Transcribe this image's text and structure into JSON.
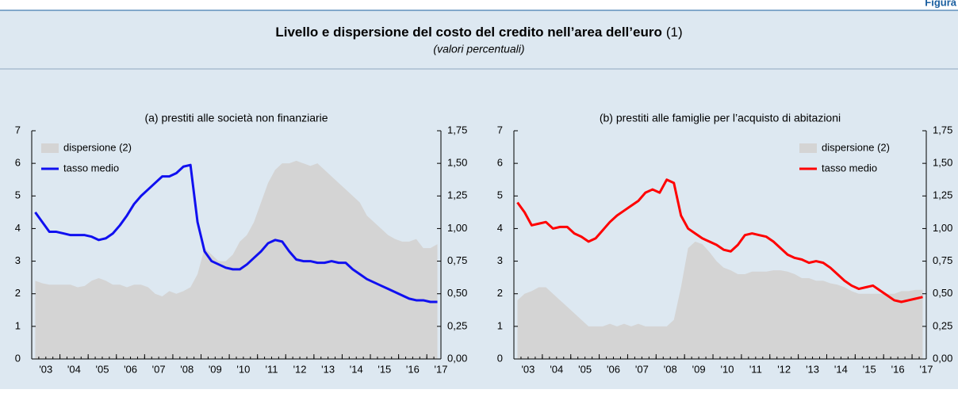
{
  "header": {
    "figure_label": "Figura",
    "title": "Livello e dispersione del costo del credito nell’area dell’euro",
    "title_note": "(1)",
    "subtitle": "(valori percentuali)"
  },
  "chart_data": [
    {
      "type": "line",
      "subtitle": "(a) prestiti alle società non finanziarie",
      "legend": "upper left",
      "grid": false,
      "categories": [
        null,
        "'03",
        null,
        null,
        null,
        "'04",
        null,
        null,
        null,
        "'05",
        null,
        null,
        null,
        "'06",
        null,
        null,
        null,
        "'07",
        null,
        null,
        null,
        "'08",
        null,
        null,
        null,
        "'09",
        null,
        null,
        null,
        "'10",
        null,
        null,
        null,
        "'11",
        null,
        null,
        null,
        "'12",
        null,
        null,
        null,
        "'13",
        null,
        null,
        null,
        "'14",
        null,
        null,
        null,
        "'15",
        null,
        null,
        null,
        "'16",
        null,
        null,
        null,
        "'17"
      ],
      "ylim": [
        0,
        7
      ],
      "yticks": [
        0,
        1,
        2,
        3,
        4,
        5,
        6,
        7
      ],
      "y2lim": [
        0,
        1.75
      ],
      "y2ticks": [
        {
          "value": 0,
          "label": "0,00"
        },
        {
          "value": 0.25,
          "label": "0,25"
        },
        {
          "value": 0.5,
          "label": "0,50"
        },
        {
          "value": 0.75,
          "label": "0,75"
        },
        {
          "value": 1,
          "label": "1,00"
        },
        {
          "value": 1.25,
          "label": "1,25"
        },
        {
          "value": 1.5,
          "label": "1,50"
        },
        {
          "value": 1.75,
          "label": "1,75"
        }
      ],
      "series": [
        {
          "name": "dispersione (2)",
          "type": "area",
          "axis": "y2",
          "color": "#d4d4d4",
          "values": [
            0.6,
            0.58,
            0.57,
            0.57,
            0.57,
            0.57,
            0.55,
            0.56,
            0.6,
            0.62,
            0.6,
            0.57,
            0.57,
            0.55,
            0.57,
            0.57,
            0.55,
            0.5,
            0.48,
            0.52,
            0.5,
            0.52,
            0.55,
            0.65,
            0.85,
            0.8,
            0.75,
            0.75,
            0.8,
            0.9,
            0.95,
            1.05,
            1.2,
            1.35,
            1.45,
            1.5,
            1.5,
            1.52,
            1.5,
            1.48,
            1.5,
            1.45,
            1.4,
            1.35,
            1.3,
            1.25,
            1.2,
            1.1,
            1.05,
            1.0,
            0.95,
            0.92,
            0.9,
            0.9,
            0.92,
            0.85,
            0.85,
            0.88
          ]
        },
        {
          "name": "tasso medio",
          "type": "line",
          "axis": "y",
          "color": "#1010f0",
          "values": [
            4.5,
            4.2,
            3.9,
            3.9,
            3.85,
            3.8,
            3.8,
            3.8,
            3.75,
            3.65,
            3.7,
            3.85,
            4.1,
            4.4,
            4.75,
            5.0,
            5.2,
            5.4,
            5.6,
            5.6,
            5.7,
            5.9,
            5.95,
            4.2,
            3.3,
            3.0,
            2.9,
            2.8,
            2.75,
            2.75,
            2.9,
            3.1,
            3.3,
            3.55,
            3.65,
            3.6,
            3.3,
            3.05,
            3.0,
            3.0,
            2.95,
            2.95,
            3.0,
            2.95,
            2.95,
            2.75,
            2.6,
            2.45,
            2.35,
            2.25,
            2.15,
            2.05,
            1.95,
            1.85,
            1.8,
            1.8,
            1.75,
            1.75
          ]
        }
      ]
    },
    {
      "type": "line",
      "subtitle": "(b) prestiti alle famiglie per l’acquisto di abitazioni",
      "legend": "upper right",
      "grid": false,
      "categories": [
        null,
        "'03",
        null,
        null,
        null,
        "'04",
        null,
        null,
        null,
        "'05",
        null,
        null,
        null,
        "'06",
        null,
        null,
        null,
        "'07",
        null,
        null,
        null,
        "'08",
        null,
        null,
        null,
        "'09",
        null,
        null,
        null,
        "'10",
        null,
        null,
        null,
        "'11",
        null,
        null,
        null,
        "'12",
        null,
        null,
        null,
        "'13",
        null,
        null,
        null,
        "'14",
        null,
        null,
        null,
        "'15",
        null,
        null,
        null,
        "'16",
        null,
        null,
        null,
        "'17"
      ],
      "ylim": [
        0,
        7
      ],
      "yticks": [
        0,
        1,
        2,
        3,
        4,
        5,
        6,
        7
      ],
      "y2lim": [
        0,
        1.75
      ],
      "y2ticks": [
        {
          "value": 0,
          "label": "0,00"
        },
        {
          "value": 0.25,
          "label": "0,25"
        },
        {
          "value": 0.5,
          "label": "0,50"
        },
        {
          "value": 0.75,
          "label": "0,75"
        },
        {
          "value": 1,
          "label": "1,00"
        },
        {
          "value": 1.25,
          "label": "1,25"
        },
        {
          "value": 1.5,
          "label": "1,50"
        },
        {
          "value": 1.75,
          "label": "1,75"
        }
      ],
      "series": [
        {
          "name": "dispersione (2)",
          "type": "area",
          "axis": "y2",
          "color": "#d4d4d4",
          "values": [
            0.45,
            0.5,
            0.52,
            0.55,
            0.55,
            0.5,
            0.45,
            0.4,
            0.35,
            0.3,
            0.25,
            0.25,
            0.25,
            0.27,
            0.25,
            0.27,
            0.25,
            0.27,
            0.25,
            0.25,
            0.25,
            0.25,
            0.3,
            0.55,
            0.85,
            0.9,
            0.88,
            0.82,
            0.75,
            0.7,
            0.68,
            0.65,
            0.65,
            0.67,
            0.67,
            0.67,
            0.68,
            0.68,
            0.67,
            0.65,
            0.62,
            0.62,
            0.6,
            0.6,
            0.58,
            0.57,
            0.55,
            0.52,
            0.5,
            0.5,
            0.5,
            0.5,
            0.5,
            0.5,
            0.52,
            0.52,
            0.53,
            0.53
          ]
        },
        {
          "name": "tasso medio",
          "type": "line",
          "axis": "y",
          "color": "#ff0000",
          "values": [
            4.8,
            4.5,
            4.1,
            4.15,
            4.2,
            4.0,
            4.05,
            4.05,
            3.85,
            3.75,
            3.6,
            3.7,
            3.95,
            4.2,
            4.4,
            4.55,
            4.7,
            4.85,
            5.1,
            5.2,
            5.1,
            5.5,
            5.4,
            4.4,
            4.0,
            3.85,
            3.7,
            3.6,
            3.5,
            3.35,
            3.3,
            3.5,
            3.8,
            3.85,
            3.8,
            3.75,
            3.6,
            3.4,
            3.2,
            3.1,
            3.05,
            2.95,
            3.0,
            2.95,
            2.8,
            2.6,
            2.4,
            2.25,
            2.15,
            2.2,
            2.25,
            2.1,
            1.95,
            1.8,
            1.75,
            1.8,
            1.85,
            1.9
          ]
        }
      ]
    }
  ]
}
